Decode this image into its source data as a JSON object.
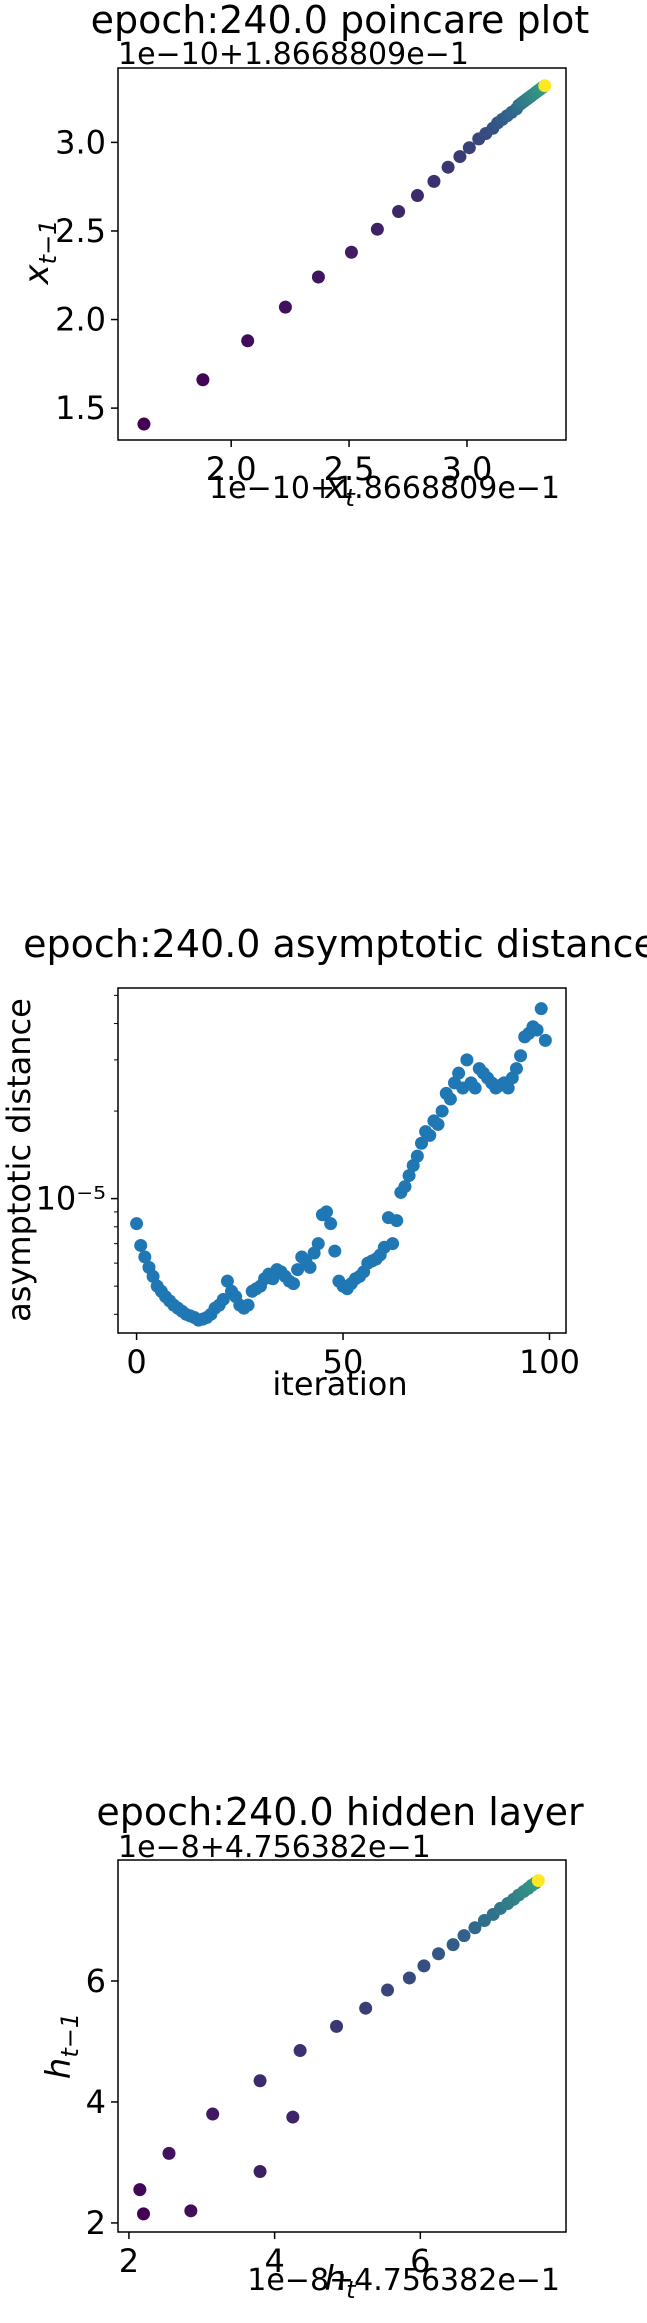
{
  "chart_data": [
    {
      "type": "scatter",
      "title": "epoch:240.0 poincare plot",
      "xlabel": "$x_t$",
      "ylabel": "$x_{t-1}$",
      "x_offset_text": "1e−10+1.8668809e−1",
      "y_offset_text": "1e−10+1.8668809e−1",
      "xlim": [
        1.52,
        3.42
      ],
      "ylim": [
        1.32,
        3.42
      ],
      "xticks": [
        2.0,
        2.5,
        3.0
      ],
      "xtick_labels": [
        "2.0",
        "2.5",
        "3.0"
      ],
      "yticks": [
        1.5,
        2.0,
        2.5,
        3.0
      ],
      "ytick_labels": [
        "1.5",
        "2.0",
        "2.5",
        "3.0"
      ],
      "colormap": [
        "#440154",
        "#31688e",
        "#35b779",
        "#fde725"
      ],
      "points": [
        [
          1.63,
          1.41
        ],
        [
          1.88,
          1.66
        ],
        [
          2.07,
          1.88
        ],
        [
          2.23,
          2.07
        ],
        [
          2.37,
          2.24
        ],
        [
          2.51,
          2.38
        ],
        [
          2.62,
          2.51
        ],
        [
          2.71,
          2.61
        ],
        [
          2.79,
          2.7
        ],
        [
          2.86,
          2.78
        ],
        [
          2.92,
          2.86
        ],
        [
          2.97,
          2.92
        ],
        [
          3.01,
          2.97
        ],
        [
          3.05,
          3.02
        ],
        [
          3.08,
          3.05
        ],
        [
          3.11,
          3.08
        ],
        [
          3.13,
          3.11
        ],
        [
          3.15,
          3.13
        ],
        [
          3.17,
          3.15
        ],
        [
          3.19,
          3.17
        ],
        [
          3.21,
          3.19
        ],
        [
          3.22,
          3.21
        ],
        [
          3.23,
          3.22
        ],
        [
          3.24,
          3.23
        ],
        [
          3.25,
          3.24
        ],
        [
          3.26,
          3.25
        ],
        [
          3.27,
          3.26
        ],
        [
          3.28,
          3.27
        ],
        [
          3.29,
          3.28
        ],
        [
          3.3,
          3.29
        ],
        [
          3.31,
          3.3
        ],
        [
          3.32,
          3.31
        ],
        [
          3.33,
          3.32
        ]
      ]
    },
    {
      "type": "scatter",
      "title": "epoch:240.0 asymptotic distance",
      "xlabel": "iteration",
      "ylabel": "asymptotic distance",
      "yscale": "log",
      "xlim": [
        -4.5,
        104
      ],
      "ylim": [
        3.45e-06,
        5.3e-05
      ],
      "xticks": [
        0,
        50,
        100
      ],
      "xtick_labels": [
        "0",
        "50",
        "100"
      ],
      "yticks": [
        1e-05
      ],
      "ytick_labels": [
        "10⁻⁵"
      ],
      "color": "#1f77b4",
      "x": [
        0,
        1,
        2,
        3,
        4,
        5,
        6,
        7,
        8,
        9,
        10,
        11,
        12,
        13,
        14,
        15,
        16,
        17,
        18,
        19,
        20,
        21,
        22,
        23,
        24,
        25,
        26,
        27,
        28,
        29,
        30,
        31,
        32,
        33,
        34,
        35,
        36,
        37,
        38,
        39,
        40,
        41,
        42,
        43,
        44,
        45,
        46,
        47,
        48,
        49,
        50,
        51,
        52,
        53,
        54,
        55,
        56,
        57,
        58,
        59,
        60,
        61,
        62,
        63,
        64,
        65,
        66,
        67,
        68,
        69,
        70,
        71,
        72,
        73,
        74,
        75,
        76,
        77,
        78,
        79,
        80,
        81,
        82,
        83,
        84,
        85,
        86,
        87,
        88,
        89,
        90,
        91,
        92,
        93,
        94,
        95,
        96,
        97,
        98,
        99
      ],
      "y": [
        8.2e-06,
        6.9e-06,
        6.3e-06,
        5.8e-06,
        5.4e-06,
        5e-06,
        4.8e-06,
        4.6e-06,
        4.45e-06,
        4.3e-06,
        4.2e-06,
        4.1e-06,
        4e-06,
        3.95e-06,
        3.9e-06,
        3.82e-06,
        3.85e-06,
        3.9e-06,
        4e-06,
        4.2e-06,
        4.3e-06,
        4.5e-06,
        5.2e-06,
        4.8e-06,
        4.6e-06,
        4.3e-06,
        4.2e-06,
        4.3e-06,
        4.8e-06,
        4.9e-06,
        5e-06,
        5.3e-06,
        5.5e-06,
        5.3e-06,
        5.7e-06,
        5.6e-06,
        5.4e-06,
        5.2e-06,
        5.1e-06,
        5.7e-06,
        6.3e-06,
        6.1e-06,
        5.8e-06,
        6.5e-06,
        7e-06,
        8.8e-06,
        9e-06,
        8.2e-06,
        6.6e-06,
        5.2e-06,
        5e-06,
        4.9e-06,
        5.1e-06,
        5.3e-06,
        5.4e-06,
        5.6e-06,
        6e-06,
        6.1e-06,
        6.2e-06,
        6.4e-06,
        6.8e-06,
        8.6e-06,
        7e-06,
        8.4e-06,
        1.05e-05,
        1.1e-05,
        1.2e-05,
        1.3e-05,
        1.4e-05,
        1.55e-05,
        1.7e-05,
        1.65e-05,
        1.85e-05,
        1.8e-05,
        2e-05,
        2.3e-05,
        2.2e-05,
        2.5e-05,
        2.7e-05,
        2.4e-05,
        3e-05,
        2.5e-05,
        2.4e-05,
        2.8e-05,
        2.7e-05,
        2.6e-05,
        2.5e-05,
        2.4e-05,
        2.45e-05,
        2.5e-05,
        2.4e-05,
        2.6e-05,
        2.8e-05,
        3.1e-05,
        3.6e-05,
        3.7e-05,
        3.9e-05,
        3.8e-05,
        4.5e-05,
        3.5e-05
      ]
    },
    {
      "type": "scatter",
      "title": "epoch:240.0 hidden layer",
      "xlabel": "$h_t$",
      "ylabel": "$h_{t-1}$",
      "x_offset_text": "1e−8+4.756382e−1",
      "y_offset_text": "1e−8+4.756382e−1",
      "xlim": [
        1.85,
        8.0
      ],
      "ylim": [
        1.85,
        8.0
      ],
      "xticks": [
        2,
        4,
        6
      ],
      "xtick_labels": [
        "2",
        "4",
        "6"
      ],
      "yticks": [
        2,
        4,
        6
      ],
      "ytick_labels": [
        "2",
        "4",
        "6"
      ],
      "colormap": [
        "#440154",
        "#31688e",
        "#35b779",
        "#fde725"
      ],
      "points": [
        [
          2.2,
          2.15
        ],
        [
          2.15,
          2.55
        ],
        [
          2.85,
          2.2
        ],
        [
          2.55,
          3.15
        ],
        [
          3.15,
          3.8
        ],
        [
          3.8,
          2.85
        ],
        [
          4.25,
          3.75
        ],
        [
          3.8,
          4.35
        ],
        [
          4.35,
          4.85
        ],
        [
          4.85,
          5.25
        ],
        [
          5.25,
          5.55
        ],
        [
          5.55,
          5.85
        ],
        [
          5.85,
          6.05
        ],
        [
          6.05,
          6.25
        ],
        [
          6.25,
          6.45
        ],
        [
          6.45,
          6.6
        ],
        [
          6.6,
          6.75
        ],
        [
          6.75,
          6.88
        ],
        [
          6.88,
          7.0
        ],
        [
          7.0,
          7.1
        ],
        [
          7.1,
          7.2
        ],
        [
          7.2,
          7.28
        ],
        [
          7.28,
          7.35
        ],
        [
          7.35,
          7.42
        ],
        [
          7.42,
          7.48
        ],
        [
          7.48,
          7.53
        ],
        [
          7.53,
          7.58
        ],
        [
          7.58,
          7.62
        ],
        [
          7.62,
          7.66
        ]
      ]
    }
  ]
}
